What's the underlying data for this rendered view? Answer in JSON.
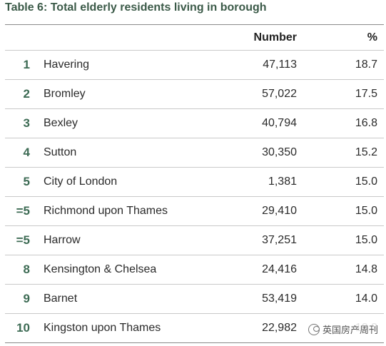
{
  "title": "Table 6: Total elderly residents living in borough",
  "header": {
    "rank": "",
    "name": "",
    "number": "Number",
    "percent": "%"
  },
  "rows": [
    {
      "rank": "1",
      "name": "Havering",
      "number": "47,113",
      "percent": "18.7"
    },
    {
      "rank": "2",
      "name": "Bromley",
      "number": "57,022",
      "percent": "17.5"
    },
    {
      "rank": "3",
      "name": "Bexley",
      "number": "40,794",
      "percent": "16.8"
    },
    {
      "rank": "4",
      "name": "Sutton",
      "number": "30,350",
      "percent": "15.2"
    },
    {
      "rank": "5",
      "name": "City of London",
      "number": "1,381",
      "percent": "15.0"
    },
    {
      "rank": "=5",
      "name": "Richmond upon Thames",
      "number": "29,410",
      "percent": "15.0"
    },
    {
      "rank": "=5",
      "name": "Harrow",
      "number": "37,251",
      "percent": "15.0"
    },
    {
      "rank": "8",
      "name": "Kensington & Chelsea",
      "number": "24,416",
      "percent": "14.8"
    },
    {
      "rank": "9",
      "name": "Barnet",
      "number": "53,419",
      "percent": "14.0"
    },
    {
      "rank": "10",
      "name": "Kingston upon Thames",
      "number": "22,982",
      "percent": "13.3"
    }
  ],
  "watermark": {
    "icon": "wechat-icon",
    "text": "英国房产周刊"
  }
}
